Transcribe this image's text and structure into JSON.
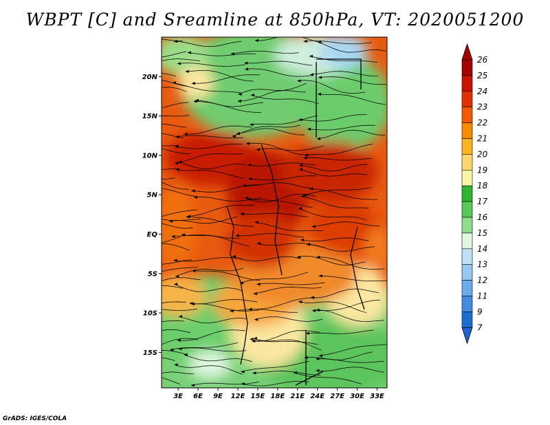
{
  "title": "WBPT [C] and Sreamline at 850hPa, VT: 2020051200",
  "credit": "GrADS: IGES/COLA",
  "map": {
    "lat_ticks": [
      {
        "value": 20,
        "label": "20N"
      },
      {
        "value": 15,
        "label": "15N"
      },
      {
        "value": 10,
        "label": "10N"
      },
      {
        "value": 5,
        "label": "5N"
      },
      {
        "value": 0,
        "label": "EQ"
      },
      {
        "value": -5,
        "label": "5S"
      },
      {
        "value": -10,
        "label": "10S"
      },
      {
        "value": -15,
        "label": "15S"
      }
    ],
    "lon_ticks": [
      {
        "value": 3,
        "label": "3E"
      },
      {
        "value": 6,
        "label": "6E"
      },
      {
        "value": 9,
        "label": "9E"
      },
      {
        "value": 12,
        "label": "12E"
      },
      {
        "value": 15,
        "label": "15E"
      },
      {
        "value": 18,
        "label": "18E"
      },
      {
        "value": 21,
        "label": "21E"
      },
      {
        "value": 24,
        "label": "24E"
      },
      {
        "value": 27,
        "label": "27E"
      },
      {
        "value": 30,
        "label": "30E"
      },
      {
        "value": 33,
        "label": "33E"
      }
    ],
    "extent": {
      "lon_min": 0.5,
      "lon_max": 34.5,
      "lat_min": -19.5,
      "lat_max": 25
    },
    "field": "wet-bulb potential temperature",
    "overlay": "streamlines"
  },
  "colorbar": {
    "labels": [
      "26",
      "25",
      "24",
      "23",
      "22",
      "21",
      "20",
      "19",
      "18",
      "17",
      "16",
      "15",
      "14",
      "13",
      "12",
      "11",
      "9",
      "7"
    ],
    "colors": [
      "#a50000",
      "#c81400",
      "#e03200",
      "#f05a00",
      "#f78a00",
      "#fbb420",
      "#fcd770",
      "#fbf3aa",
      "#32b432",
      "#5ac85a",
      "#8ede8e",
      "#dff6df",
      "#bfe2f6",
      "#96c8f0",
      "#6eaaea",
      "#468cdc",
      "#1e6ed2"
    ],
    "top_color": "#a50000",
    "bottom_color": "#1e64d2"
  }
}
